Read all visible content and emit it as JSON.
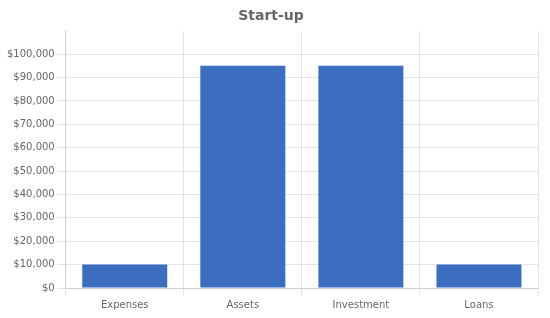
{
  "chart_data": {
    "type": "bar",
    "title": "Start-up",
    "categories": [
      "Expenses",
      "Assets",
      "Investment",
      "Loans"
    ],
    "values": [
      10000,
      95000,
      95000,
      10000
    ],
    "color": "#3C6EBF",
    "ylim": [
      0,
      110000
    ],
    "yticks": [
      {
        "value": 0,
        "label": "$0"
      },
      {
        "value": 10000,
        "label": "$10,000"
      },
      {
        "value": 20000,
        "label": "$20,000"
      },
      {
        "value": 30000,
        "label": "$30,000"
      },
      {
        "value": 40000,
        "label": "$40,000"
      },
      {
        "value": 50000,
        "label": "$50,000"
      },
      {
        "value": 60000,
        "label": "$60,000"
      },
      {
        "value": 70000,
        "label": "$70,000"
      },
      {
        "value": 80000,
        "label": "$80,000"
      },
      {
        "value": 90000,
        "label": "$90,000"
      },
      {
        "value": 100000,
        "label": "$100,000"
      }
    ],
    "grid": true
  }
}
